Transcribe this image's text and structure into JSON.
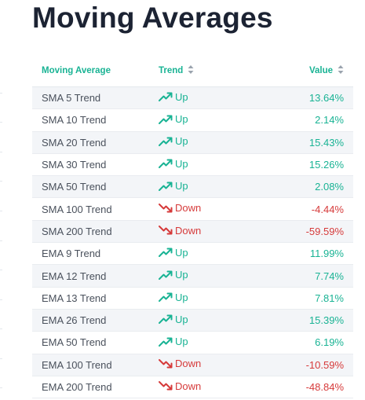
{
  "title": "Moving Averages",
  "columns": {
    "moving_average": "Moving Average",
    "trend": "Trend",
    "value": "Value"
  },
  "colors": {
    "up": "#19b394",
    "down": "#d63a3a",
    "header": "#19b394"
  },
  "rows": [
    {
      "name": "SMA 5 Trend",
      "trend": "Up",
      "value": "13.64%"
    },
    {
      "name": "SMA 10 Trend",
      "trend": "Up",
      "value": "2.14%"
    },
    {
      "name": "SMA 20 Trend",
      "trend": "Up",
      "value": "15.43%"
    },
    {
      "name": "SMA 30 Trend",
      "trend": "Up",
      "value": "15.26%"
    },
    {
      "name": "SMA 50 Trend",
      "trend": "Up",
      "value": "2.08%"
    },
    {
      "name": "SMA 100 Trend",
      "trend": "Down",
      "value": "-4.44%"
    },
    {
      "name": "SMA 200 Trend",
      "trend": "Down",
      "value": "-59.59%"
    },
    {
      "name": "EMA 9 Trend",
      "trend": "Up",
      "value": "11.99%"
    },
    {
      "name": "EMA 12 Trend",
      "trend": "Up",
      "value": "7.74%"
    },
    {
      "name": "EMA 13 Trend",
      "trend": "Up",
      "value": "7.81%"
    },
    {
      "name": "EMA 26 Trend",
      "trend": "Up",
      "value": "15.39%"
    },
    {
      "name": "EMA 50 Trend",
      "trend": "Up",
      "value": "6.19%"
    },
    {
      "name": "EMA 100 Trend",
      "trend": "Down",
      "value": "-10.59%"
    },
    {
      "name": "EMA 200 Trend",
      "trend": "Down",
      "value": "-48.84%"
    }
  ]
}
